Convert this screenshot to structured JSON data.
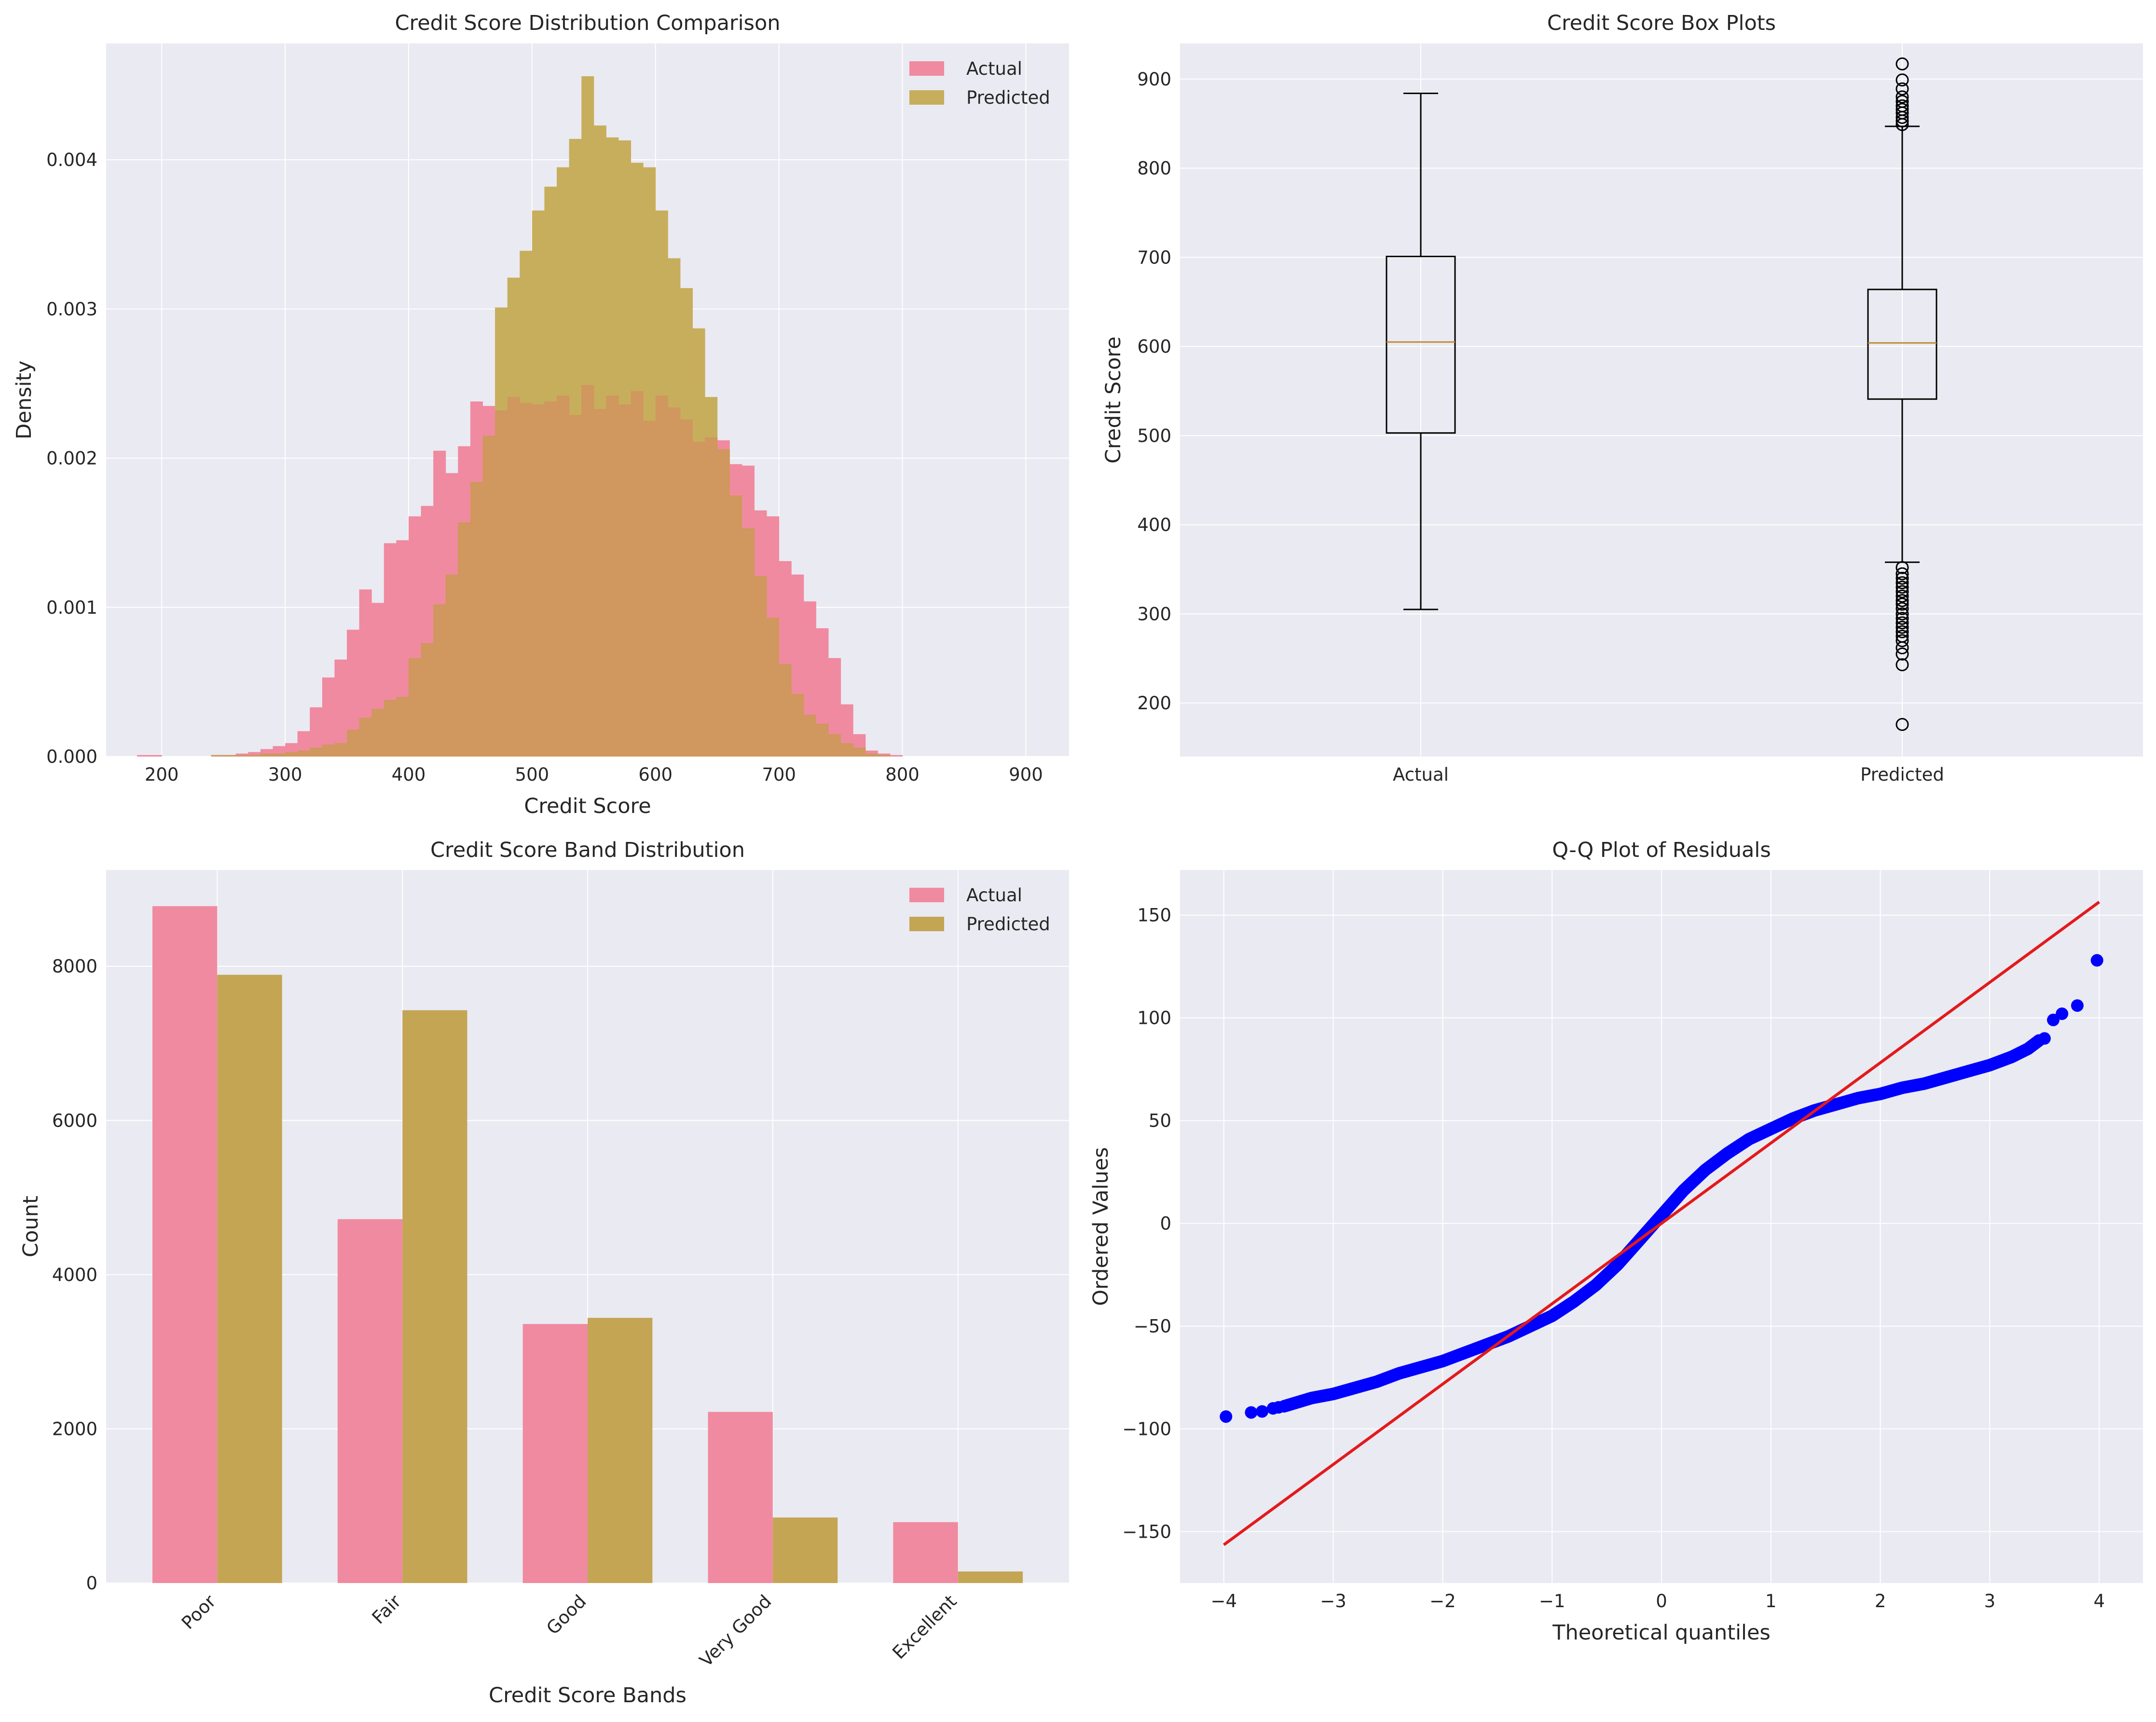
{
  "colors": {
    "actual": "#f08aa0",
    "predicted": "#c4a554",
    "predicted_hist": "#c7ae5c",
    "overlap": "#d0975e",
    "panel_bg": "#eaeaf2",
    "grid": "#ffffff",
    "median": "#c08a30",
    "qq_points": "#0000ff",
    "qq_line": "#e31a1c"
  },
  "chart_data": [
    {
      "type": "histogram",
      "title": "Credit Score Distribution Comparison",
      "xlabel": "Credit Score",
      "ylabel": "Density",
      "xlim": [
        155,
        935
      ],
      "ylim": [
        0,
        0.00478
      ],
      "xticks": [
        200,
        300,
        400,
        500,
        600,
        700,
        800,
        900
      ],
      "yticks": [
        0.0,
        0.001,
        0.002,
        0.003,
        0.004
      ],
      "ytick_labels": [
        "0.000",
        "0.001",
        "0.002",
        "0.003",
        "0.004"
      ],
      "legend_position": "top-right",
      "series": [
        {
          "name": "Actual",
          "color": "#f08aa0",
          "bin_start": 180,
          "bin_width": 10,
          "values": [
            1e-05,
            1e-05,
            0.0,
            0.0,
            0.0,
            0.0,
            1e-05,
            1e-05,
            2e-05,
            3e-05,
            5e-05,
            7e-05,
            9e-05,
            0.00017,
            0.00033,
            0.00053,
            0.00065,
            0.00085,
            0.00112,
            0.00103,
            0.00143,
            0.00145,
            0.00161,
            0.00168,
            0.00205,
            0.0019,
            0.00208,
            0.00238,
            0.00235,
            0.00232,
            0.00241,
            0.00237,
            0.00236,
            0.00238,
            0.00242,
            0.00229,
            0.00249,
            0.00233,
            0.00242,
            0.00236,
            0.00245,
            0.00225,
            0.00242,
            0.00234,
            0.00226,
            0.00211,
            0.00214,
            0.00212,
            0.00196,
            0.00195,
            0.00165,
            0.00161,
            0.00131,
            0.00122,
            0.00104,
            0.00086,
            0.00066,
            0.00035,
            0.00015,
            4e-05,
            2e-05,
            1e-05
          ]
        },
        {
          "name": "Predicted",
          "color": "#c7ae5c",
          "bin_start": 180,
          "bin_width": 10,
          "values": [
            0.0,
            0.0,
            0.0,
            0.0,
            0.0,
            0.0,
            1e-05,
            1e-05,
            1e-05,
            1e-05,
            2e-05,
            2e-05,
            3e-05,
            4e-05,
            6e-05,
            8e-05,
            9e-05,
            0.00018,
            0.00026,
            0.00032,
            0.00038,
            0.0004,
            0.00066,
            0.00076,
            0.00102,
            0.00122,
            0.00157,
            0.00184,
            0.00215,
            0.00301,
            0.00321,
            0.00339,
            0.00366,
            0.00382,
            0.00395,
            0.00414,
            0.00456,
            0.00423,
            0.00415,
            0.00413,
            0.00398,
            0.00395,
            0.00366,
            0.00334,
            0.00314,
            0.00287,
            0.00241,
            0.00206,
            0.00175,
            0.00153,
            0.00121,
            0.00093,
            0.00062,
            0.00042,
            0.00028,
            0.00022,
            0.00015,
            9e-05,
            6e-05,
            2e-05,
            1e-05,
            0.0
          ]
        }
      ]
    },
    {
      "type": "box",
      "title": "Credit Score Box Plots",
      "xlabel": "",
      "ylabel": "Credit Score",
      "ylim": [
        140,
        940
      ],
      "yticks": [
        200,
        300,
        400,
        500,
        600,
        700,
        800,
        900
      ],
      "categories": [
        "Actual",
        "Predicted"
      ],
      "boxes": [
        {
          "name": "Actual",
          "whisker_low": 305,
          "q1": 503,
          "median": 605,
          "q3": 701,
          "whisker_high": 884,
          "outliers": []
        },
        {
          "name": "Predicted",
          "whisker_low": 358,
          "q1": 541,
          "median": 604,
          "q3": 664,
          "whisker_high": 847,
          "outliers": [
            352,
            345,
            340,
            335,
            330,
            325,
            320,
            315,
            311,
            306,
            300,
            295,
            290,
            285,
            280,
            275,
            270,
            262,
            255,
            243,
            176,
            849,
            853,
            857,
            862,
            866,
            870,
            875,
            880,
            889,
            899,
            917
          ]
        }
      ]
    },
    {
      "type": "bar",
      "title": "Credit Score Band Distribution",
      "xlabel": "Credit Score Bands",
      "ylabel": "Count",
      "ylim": [
        0,
        9250
      ],
      "yticks": [
        0,
        2000,
        4000,
        6000,
        8000
      ],
      "categories": [
        "Poor",
        "Fair",
        "Good",
        "Very Good",
        "Excellent"
      ],
      "legend_position": "top-right",
      "series": [
        {
          "name": "Actual",
          "color": "#f08aa0",
          "values": [
            8780,
            4720,
            3360,
            2220,
            790
          ]
        },
        {
          "name": "Predicted",
          "color": "#c4a554",
          "values": [
            7890,
            7430,
            3440,
            850,
            150
          ]
        }
      ]
    },
    {
      "type": "scatter",
      "title": "Q-Q Plot of Residuals",
      "xlabel": "Theoretical quantiles",
      "ylabel": "Ordered Values",
      "xlim": [
        -4.4,
        4.4
      ],
      "ylim": [
        -175,
        172
      ],
      "xticks": [
        -4,
        -3,
        -2,
        -1,
        0,
        1,
        2,
        3,
        4
      ],
      "yticks": [
        -150,
        -100,
        -50,
        0,
        50,
        100,
        150
      ],
      "ytick_labels": [
        "−150",
        "−100",
        "−50",
        "0",
        "50",
        "100",
        "150"
      ],
      "xtick_labels": [
        "−4",
        "−3",
        "−2",
        "−1",
        "0",
        "1",
        "2",
        "3",
        "4"
      ],
      "quantile_curve": [
        [
          -3.45,
          -89
        ],
        [
          -3.2,
          -85
        ],
        [
          -3.0,
          -83
        ],
        [
          -2.8,
          -80
        ],
        [
          -2.6,
          -77
        ],
        [
          -2.4,
          -73
        ],
        [
          -2.2,
          -70
        ],
        [
          -2.0,
          -67
        ],
        [
          -1.8,
          -63
        ],
        [
          -1.6,
          -59
        ],
        [
          -1.4,
          -55
        ],
        [
          -1.2,
          -50
        ],
        [
          -1.0,
          -45
        ],
        [
          -0.8,
          -38
        ],
        [
          -0.6,
          -30
        ],
        [
          -0.4,
          -20
        ],
        [
          -0.2,
          -8
        ],
        [
          0.0,
          4
        ],
        [
          0.2,
          16
        ],
        [
          0.4,
          26
        ],
        [
          0.6,
          34
        ],
        [
          0.8,
          41
        ],
        [
          1.0,
          46
        ],
        [
          1.2,
          51
        ],
        [
          1.4,
          55
        ],
        [
          1.6,
          58
        ],
        [
          1.8,
          61
        ],
        [
          2.0,
          63
        ],
        [
          2.2,
          66
        ],
        [
          2.4,
          68
        ],
        [
          2.6,
          71
        ],
        [
          2.8,
          74
        ],
        [
          3.0,
          77
        ],
        [
          3.2,
          81
        ],
        [
          3.35,
          85
        ],
        [
          3.45,
          89
        ]
      ],
      "tail_points": [
        [
          -3.98,
          -94
        ],
        [
          -3.75,
          -92
        ],
        [
          -3.65,
          -91.5
        ],
        [
          -3.55,
          -90
        ],
        [
          -3.5,
          -89.5
        ],
        [
          3.5,
          90
        ],
        [
          3.58,
          99
        ],
        [
          3.66,
          102
        ],
        [
          3.8,
          106
        ],
        [
          3.98,
          128
        ]
      ],
      "reference_line": {
        "slope": 39.1,
        "intercept": 0,
        "x": [
          -4,
          4
        ]
      }
    }
  ]
}
